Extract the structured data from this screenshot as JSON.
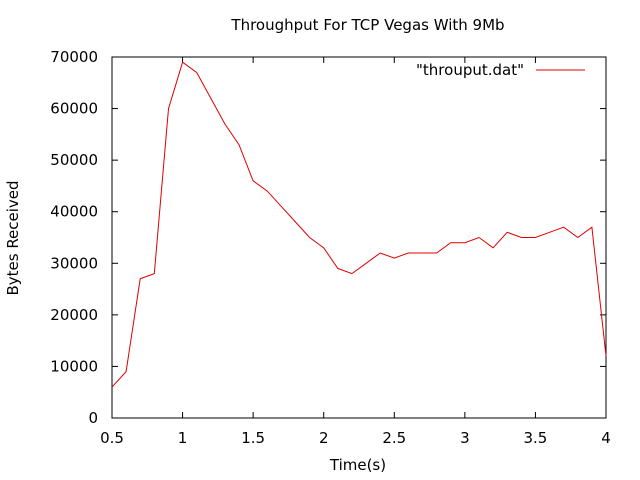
{
  "chart_data": {
    "type": "line",
    "title": "Throughput For TCP Vegas With 9Mb",
    "xlabel": "Time(s)",
    "ylabel": "Bytes Received",
    "xlim": [
      0.5,
      4
    ],
    "ylim": [
      0,
      70000
    ],
    "xticks": [
      0.5,
      1,
      1.5,
      2,
      2.5,
      3,
      3.5,
      4
    ],
    "yticks": [
      0,
      10000,
      20000,
      30000,
      40000,
      50000,
      60000,
      70000
    ],
    "xtick_labels": [
      "0.5",
      "1",
      "1.5",
      "2",
      "2.5",
      "3",
      "3.5",
      "4"
    ],
    "ytick_labels": [
      "0",
      "10000",
      "20000",
      "30000",
      "40000",
      "50000",
      "60000",
      "70000"
    ],
    "grid": false,
    "legend_position": "top-right",
    "series": [
      {
        "name": "\"throuput.dat\"",
        "color": "#e00000",
        "x": [
          0.5,
          0.6,
          0.7,
          0.8,
          0.9,
          1.0,
          1.1,
          1.2,
          1.3,
          1.4,
          1.5,
          1.6,
          1.7,
          1.8,
          1.9,
          2.0,
          2.1,
          2.2,
          2.3,
          2.4,
          2.5,
          2.6,
          2.7,
          2.8,
          2.9,
          3.0,
          3.1,
          3.2,
          3.3,
          3.4,
          3.5,
          3.6,
          3.7,
          3.8,
          3.9,
          4.0
        ],
        "y": [
          6000,
          9000,
          27000,
          28000,
          60000,
          69000,
          67000,
          62000,
          57000,
          53000,
          46000,
          44000,
          41000,
          38000,
          35000,
          33000,
          29000,
          28000,
          30000,
          32000,
          31000,
          32000,
          32000,
          32000,
          34000,
          34000,
          35000,
          33000,
          36000,
          35000,
          35000,
          36000,
          37000,
          35000,
          37000,
          12000
        ]
      }
    ]
  }
}
